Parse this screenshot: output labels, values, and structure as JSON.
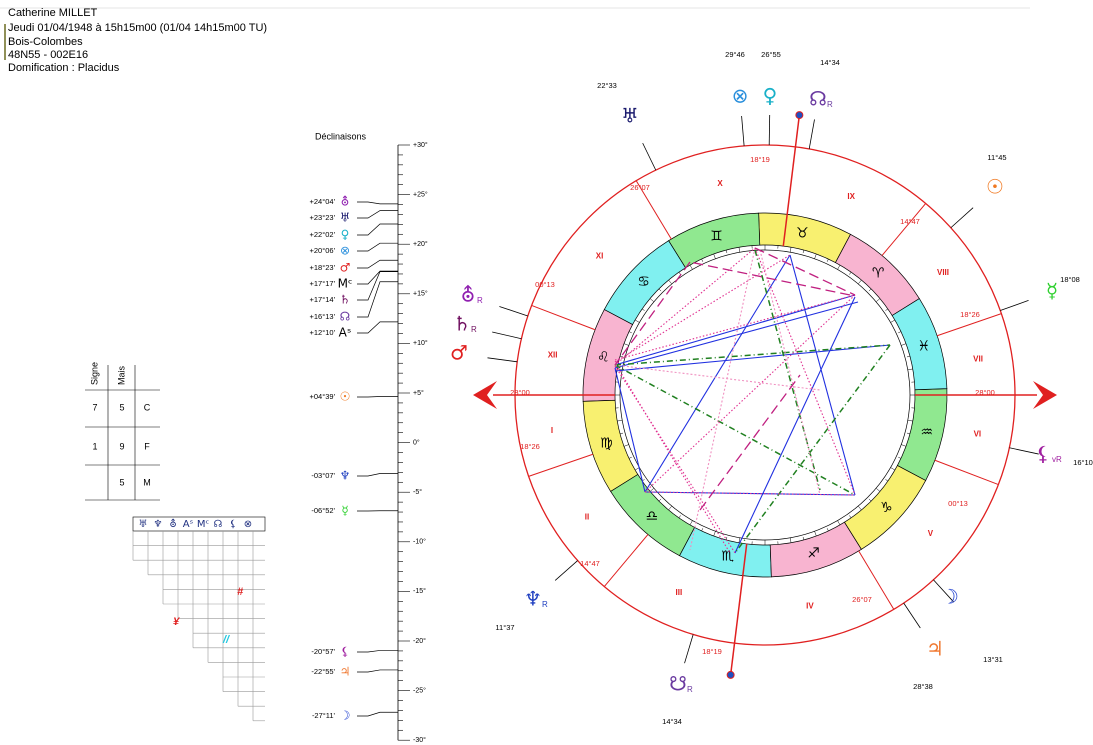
{
  "header": {
    "name": "Catherine MILLET",
    "date": "Jeudi  01/04/1948 à 15h15m00 (01/04 14h15m00 TU)",
    "place": "Bois-Colombes",
    "coords": "48N55 - 002E16",
    "houses": "Domification : Placidus"
  },
  "table": {
    "headers": [
      "Signe",
      "Mais"
    ],
    "rows": [
      [
        "7",
        "5",
        "C"
      ],
      [
        "1",
        "9",
        "F"
      ],
      [
        "5",
        "M"
      ]
    ]
  },
  "aspect_grid": {
    "headers": [
      "♅",
      "♆",
      "⛢",
      "Aˢ",
      "Mᶜ",
      "☊",
      "⚸",
      "⊗"
    ],
    "marks": [
      {
        "text": "#",
        "color": "#e02020"
      },
      {
        "text": "¥",
        "color": "#e02020"
      },
      {
        "text": "//",
        "color": "#20c8e0"
      }
    ]
  },
  "declinations": {
    "title": "Déclinaisons",
    "scale": [
      "+30°",
      "+25°",
      "+20°",
      "+15°",
      "+10°",
      "+5°",
      "0°",
      "-5°",
      "-10°",
      "-15°",
      "-20°",
      "-25°",
      "-30°"
    ],
    "entries": [
      {
        "value": "+24°04'",
        "glyph": "⛢",
        "color": "#9020b0"
      },
      {
        "value": "+23°23'",
        "glyph": "♅",
        "color": "#1a1a6e"
      },
      {
        "value": "+22°02'",
        "glyph": "♀",
        "color": "#18b0c8"
      },
      {
        "value": "+20°06'",
        "glyph": "⊗",
        "color": "#2a8fdc"
      },
      {
        "value": "+18°23'",
        "glyph": "♂",
        "color": "#e02020"
      },
      {
        "value": "+17°17'",
        "glyph": "Mᶜ",
        "color": "#000000"
      },
      {
        "value": "+17°14'",
        "glyph": "♄",
        "color": "#701060"
      },
      {
        "value": "+16°13'",
        "glyph": "☊",
        "color": "#6a3aa0"
      },
      {
        "value": "+12°10'",
        "glyph": "Aˢ",
        "color": "#000000"
      },
      {
        "value": "+04°39'",
        "glyph": "☉",
        "color": "#f07820"
      },
      {
        "value": "-03°07'",
        "glyph": "♆",
        "color": "#2040c0"
      },
      {
        "value": "-06°52'",
        "glyph": "☿",
        "color": "#30d030"
      },
      {
        "value": "-20°57'",
        "glyph": "⚸",
        "color": "#a020a0"
      },
      {
        "value": "-22°55'",
        "glyph": "♃",
        "color": "#f07830"
      },
      {
        "value": "-27°11'",
        "glyph": "☽",
        "color": "#2040d0"
      }
    ]
  },
  "wheel": {
    "signs": [
      {
        "glyph": "♈",
        "color": "#f8b4d0"
      },
      {
        "glyph": "♉",
        "color": "#f8f070"
      },
      {
        "glyph": "♊",
        "color": "#90e890"
      },
      {
        "glyph": "♋",
        "color": "#80f0f0"
      },
      {
        "glyph": "♌",
        "color": "#f8b4d0"
      },
      {
        "glyph": "♍",
        "color": "#f8f070"
      },
      {
        "glyph": "♎",
        "color": "#90e890"
      },
      {
        "glyph": "♏",
        "color": "#80f0f0"
      },
      {
        "glyph": "♐",
        "color": "#f8b4d0"
      },
      {
        "glyph": "♑",
        "color": "#f8f070"
      },
      {
        "glyph": "♒",
        "color": "#90e890"
      },
      {
        "glyph": "♓",
        "color": "#80f0f0"
      }
    ],
    "houses": [
      "I",
      "II",
      "III",
      "IV",
      "V",
      "VI",
      "VII",
      "VIII",
      "IX",
      "X",
      "XI",
      "XII"
    ],
    "cusps": [
      "28°00",
      "18°26",
      "14°47",
      "18°19",
      "26°07",
      "00°13",
      "28°00",
      "18°26",
      "14°47",
      "18°19",
      "26°07",
      "00°13"
    ],
    "planets": [
      {
        "glyph": "⊗",
        "degree": "29°46",
        "color": "#2a8fdc"
      },
      {
        "glyph": "♀",
        "degree": "26°55",
        "color": "#18b0c8"
      },
      {
        "glyph": "☊",
        "retro": "R",
        "degree": "14°34",
        "color": "#6a3aa0"
      },
      {
        "glyph": "♅",
        "degree": "22°33",
        "color": "#1a1a6e"
      },
      {
        "glyph": "☉",
        "degree": "11°45",
        "color": "#f07820"
      },
      {
        "glyph": "☿",
        "degree": "18°08",
        "color": "#30d030"
      },
      {
        "glyph": "⚸",
        "retro": "vR",
        "degree": "16°10",
        "color": "#a020a0"
      },
      {
        "glyph": "☽",
        "degree": "13°31",
        "color": "#2040d0"
      },
      {
        "glyph": "♃",
        "degree": "28°38",
        "color": "#f07830"
      },
      {
        "glyph": "☋",
        "retro": "R",
        "degree": "14°34",
        "color": "#6a3aa0"
      },
      {
        "glyph": "♆",
        "retro": "R",
        "degree": "11°37",
        "color": "#2040c0"
      },
      {
        "glyph": "⛢",
        "retro": "R",
        "color": "#9020b0"
      },
      {
        "glyph": "♄",
        "retro": "R",
        "color": "#701060"
      },
      {
        "glyph": "♂",
        "color": "#e02020"
      }
    ]
  }
}
